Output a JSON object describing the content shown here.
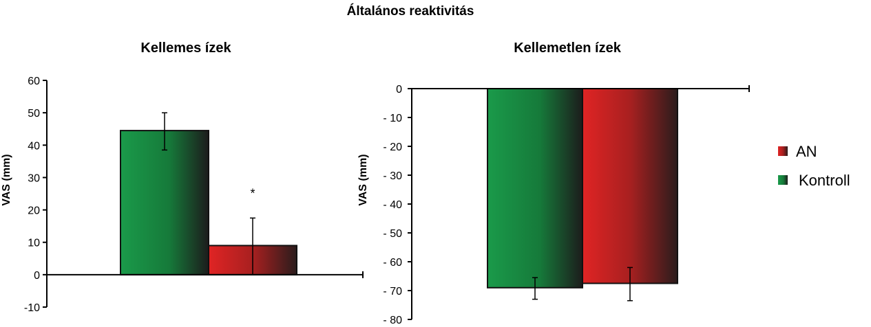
{
  "page_title": "Általános reaktivitás",
  "colors": {
    "kontroll_start": "#1a9a4a",
    "kontroll_end": "#1c1c1c",
    "an_start": "#e02424",
    "an_end": "#2a1c1c"
  },
  "legend": [
    {
      "label": "AN",
      "color_key": "an"
    },
    {
      "label": "Kontroll",
      "color_key": "kontroll"
    }
  ],
  "chart_data": [
    {
      "type": "bar",
      "title": "Kellemes ízek",
      "ylabel": "VAS (mm)",
      "xlabel": "",
      "ylim": [
        -10,
        60
      ],
      "yticks": [
        60,
        50,
        40,
        30,
        20,
        10,
        0,
        -10
      ],
      "ytick_labels": [
        "60",
        "50",
        "40",
        "30",
        "20",
        "10",
        "0",
        "-10"
      ],
      "series": [
        {
          "name": "Kontroll",
          "value": 44.5,
          "err_low": 38.5,
          "err_high": 50.0
        },
        {
          "name": "AN",
          "value": 9.0,
          "err_low": 0,
          "err_high": 17.5
        }
      ],
      "annotations": [
        {
          "text": "*"
        }
      ]
    },
    {
      "type": "bar",
      "title": "Kellemetlen ízek",
      "ylabel": "VAS (mm)",
      "xlabel": "",
      "ylim": [
        -80,
        0
      ],
      "yticks": [
        0,
        -10,
        -20,
        -30,
        -40,
        -50,
        -60,
        -70,
        -80
      ],
      "ytick_labels": [
        "0",
        "- 10",
        "- 20",
        "- 30",
        "- 40",
        "- 50",
        "- 60",
        "- 70",
        "- 80"
      ],
      "series": [
        {
          "name": "Kontroll",
          "value": -69.0,
          "err_low": -73.0,
          "err_high": -65.5
        },
        {
          "name": "AN",
          "value": -67.5,
          "err_low": -73.5,
          "err_high": -62.0
        }
      ],
      "annotations": []
    }
  ]
}
